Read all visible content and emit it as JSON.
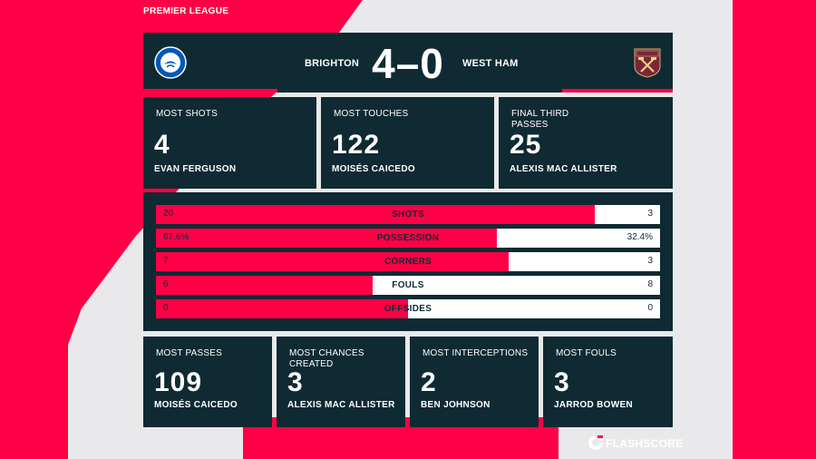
{
  "league": "PREMIER LEAGUE",
  "match": {
    "home_team": "BRIGHTON",
    "away_team": "WEST HAM",
    "score": "4–0",
    "home_crest": "brighton-crest-icon",
    "away_crest": "west-ham-crest-icon"
  },
  "top_stats": [
    {
      "label": "MOST SHOTS",
      "value": "4",
      "player": "EVAN FERGUSON"
    },
    {
      "label": "MOST TOUCHES",
      "value": "122",
      "player": "MOISÉS CAICEDO"
    },
    {
      "label": "FINAL THIRD PASSES",
      "value": "25",
      "player": "ALEXIS MAC ALLISTER"
    }
  ],
  "bar_stats": [
    {
      "label": "SHOTS",
      "home": "20",
      "away": "3",
      "home_share": 0.87
    },
    {
      "label": "POSSESSION",
      "home": "67.6%",
      "away": "32.4%",
      "home_share": 0.676
    },
    {
      "label": "CORNERS",
      "home": "7",
      "away": "3",
      "home_share": 0.7
    },
    {
      "label": "FOULS",
      "home": "6",
      "away": "8",
      "home_share": 0.43
    },
    {
      "label": "OFFSIDES",
      "home": "0",
      "away": "0",
      "home_share": 0.5
    }
  ],
  "bottom_stats": [
    {
      "label": "MOST PASSES",
      "value": "109",
      "player": "MOISÉS CAICEDO"
    },
    {
      "label": "MOST CHANCES CREATED",
      "value": "3",
      "player": "ALEXIS MAC ALLISTER"
    },
    {
      "label": "MOST INTERCEPTIONS",
      "value": "2",
      "player": "BEN JOHNSON"
    },
    {
      "label": "MOST FOULS",
      "value": "3",
      "player": "JARROD BOWEN"
    }
  ],
  "brand": "FLASHSCORE",
  "colors": {
    "accent": "#ff0046",
    "panel": "#0f2a33",
    "background": "#e9e9eb"
  }
}
